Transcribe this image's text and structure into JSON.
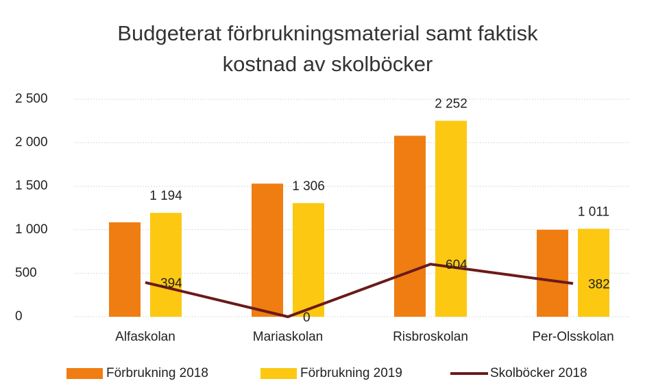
{
  "chart_data": {
    "type": "bar-line",
    "title": "Budgeterat förbrukningsmaterial samt faktisk kostnad av skolböcker",
    "categories": [
      "Alfaskolan",
      "Mariaskolan",
      "Risbroskolan",
      "Per-Olsskolan"
    ],
    "series": [
      {
        "name": "Förbrukning 2018",
        "type": "bar",
        "color": "#f07d12",
        "values": [
          1085,
          1530,
          2080,
          1000
        ]
      },
      {
        "name": "Förbrukning 2019",
        "type": "bar",
        "color": "#fcc812",
        "values": [
          1194,
          1306,
          2252,
          1011
        ],
        "value_labels": [
          "1 194",
          "1 306",
          "2 252",
          "1 011"
        ]
      },
      {
        "name": "Skolböcker 2018",
        "type": "line",
        "color": "#6b1a1a",
        "values": [
          394,
          0,
          604,
          382
        ]
      }
    ],
    "ylim": [
      0,
      2500
    ],
    "yticks": [
      0,
      500,
      {
        "value": 1000,
        "label": "1 000"
      },
      {
        "value": 1500,
        "label": "1 500"
      },
      {
        "value": 2000,
        "label": "2 000"
      },
      {
        "value": 2500,
        "label": "2 500"
      }
    ],
    "grid": true,
    "legend": "bottom"
  }
}
